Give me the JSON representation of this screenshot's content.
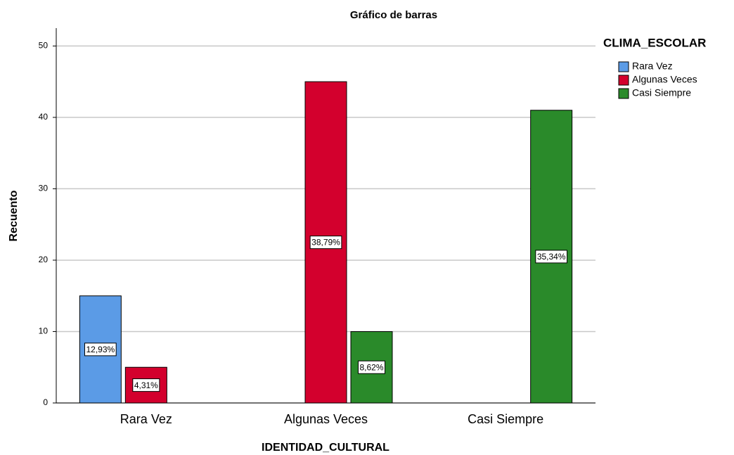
{
  "chart_data": {
    "type": "bar",
    "title": "Gráfico de barras",
    "x_label": "IDENTIDAD_CULTURAL",
    "y_label": "Recuento",
    "legend_title": "CLIMA_ESCOLAR",
    "legend_position": "right",
    "categories": [
      "Rara Vez",
      "Algunas Veces",
      "Casi Siempre"
    ],
    "series": [
      {
        "name": "Rara Vez",
        "color": "#5b9be6",
        "values": [
          15,
          null,
          null
        ],
        "value_labels": [
          "12,93%",
          null,
          null
        ]
      },
      {
        "name": "Algunas Veces",
        "color": "#d3002d",
        "values": [
          5,
          45,
          null
        ],
        "value_labels": [
          "4,31%",
          "38,79%",
          null
        ]
      },
      {
        "name": "Casi Siempre",
        "color": "#2a8a2a",
        "values": [
          null,
          10,
          41
        ],
        "value_labels": [
          null,
          "8,62%",
          "35,34%"
        ]
      }
    ],
    "ylim": [
      0,
      52.5
    ],
    "yticks": [
      0,
      10,
      20,
      30,
      40,
      50
    ],
    "grid": true
  }
}
